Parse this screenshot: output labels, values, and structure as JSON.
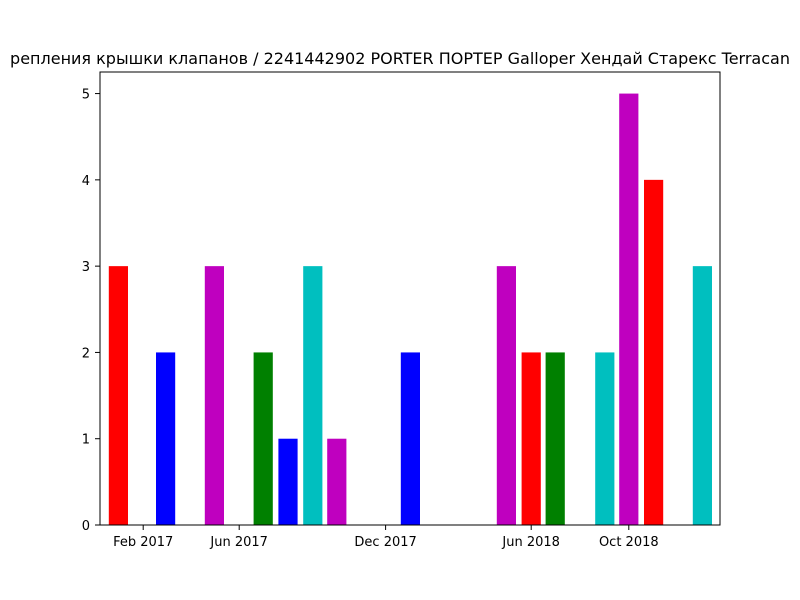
{
  "chart_data": {
    "type": "bar",
    "title": "репления крышки клапанов / 2241442902 PORTER ПОРТЕР Galloper Хендай Старекс Terracan",
    "xlabel": "",
    "ylabel": "",
    "ylim": [
      0,
      5.25
    ],
    "yticks": [
      0,
      1,
      2,
      3,
      4,
      5
    ],
    "x_axis": {
      "type": "date",
      "range": [
        "2016-12-09",
        "2019-01-23"
      ],
      "ticks": [
        {
          "date": "2017-02-01",
          "label": "Feb 2017"
        },
        {
          "date": "2017-06-01",
          "label": "Jun 2017"
        },
        {
          "date": "2017-12-01",
          "label": "Dec 2017"
        },
        {
          "date": "2018-06-01",
          "label": "Jun 2018"
        },
        {
          "date": "2018-10-01",
          "label": "Oct 2018"
        }
      ]
    },
    "bar_width_days": 24,
    "grid": false,
    "bars": [
      {
        "date": "2017-01-01",
        "value": 3,
        "color": "#ff0000"
      },
      {
        "date": "2017-03-01",
        "value": 2,
        "color": "#0000ff"
      },
      {
        "date": "2017-05-01",
        "value": 3,
        "color": "#bf00bf"
      },
      {
        "date": "2017-07-01",
        "value": 2,
        "color": "#008000"
      },
      {
        "date": "2017-08-01",
        "value": 1,
        "color": "#0000ff"
      },
      {
        "date": "2017-09-01",
        "value": 3,
        "color": "#00bfbf"
      },
      {
        "date": "2017-10-01",
        "value": 1,
        "color": "#bf00bf"
      },
      {
        "date": "2018-01-01",
        "value": 2,
        "color": "#0000ff"
      },
      {
        "date": "2018-05-01",
        "value": 3,
        "color": "#bf00bf"
      },
      {
        "date": "2018-06-01",
        "value": 2,
        "color": "#ff0000"
      },
      {
        "date": "2018-07-01",
        "value": 2,
        "color": "#008000"
      },
      {
        "date": "2018-09-01",
        "value": 2,
        "color": "#00bfbf"
      },
      {
        "date": "2018-10-01",
        "value": 5,
        "color": "#bf00bf"
      },
      {
        "date": "2018-11-01",
        "value": 4,
        "color": "#ff0000"
      },
      {
        "date": "2019-01-01",
        "value": 3,
        "color": "#00bfbf"
      }
    ]
  }
}
